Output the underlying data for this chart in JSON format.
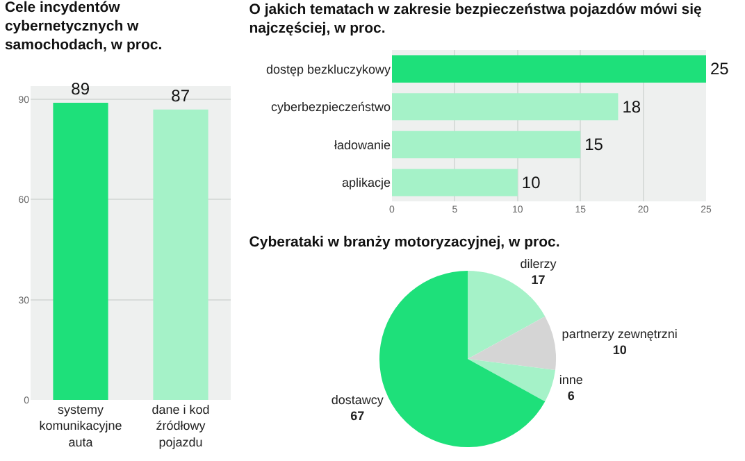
{
  "chart_data": [
    {
      "type": "bar",
      "title": "Cele incydentów cybernetycznych w samochodach, w proc.",
      "categories": [
        "systemy komunikacyjne auta",
        "dane i kod źródłowy pojazdu"
      ],
      "values": [
        89,
        87
      ],
      "colors": [
        "#1ee07a",
        "#a5f2c8"
      ],
      "ylim": [
        0,
        94
      ],
      "yticks": [
        0,
        30,
        60,
        90
      ],
      "grid": "y",
      "data_labels": true
    },
    {
      "type": "bar",
      "orientation": "horizontal",
      "title": "O jakich tematach w zakresie bezpieczeństwa pojazdów mówi się najczęściej, w proc.",
      "categories": [
        "dostęp bezkluczykowy",
        "cyberbezpieczeństwo",
        "ładowanie",
        "aplikacje"
      ],
      "values": [
        25,
        18,
        15,
        10
      ],
      "colors": [
        "#1ee07a",
        "#a5f2c8",
        "#a5f2c8",
        "#a5f2c8"
      ],
      "xlim": [
        0,
        25
      ],
      "xticks": [
        0,
        5,
        10,
        15,
        20,
        25
      ],
      "grid": "x",
      "data_labels": true
    },
    {
      "type": "pie",
      "title": "Cyberataki w branży motoryzacyjnej, w proc.",
      "categories": [
        "dilerzy",
        "partnerzy zewnętrzni",
        "inne",
        "dostawcy"
      ],
      "values": [
        17,
        10,
        6,
        67
      ],
      "colors": [
        "#a5f2c8",
        "#d5d5d5",
        "#a5f2c8",
        "#1ee07a"
      ],
      "data_labels": true
    }
  ]
}
